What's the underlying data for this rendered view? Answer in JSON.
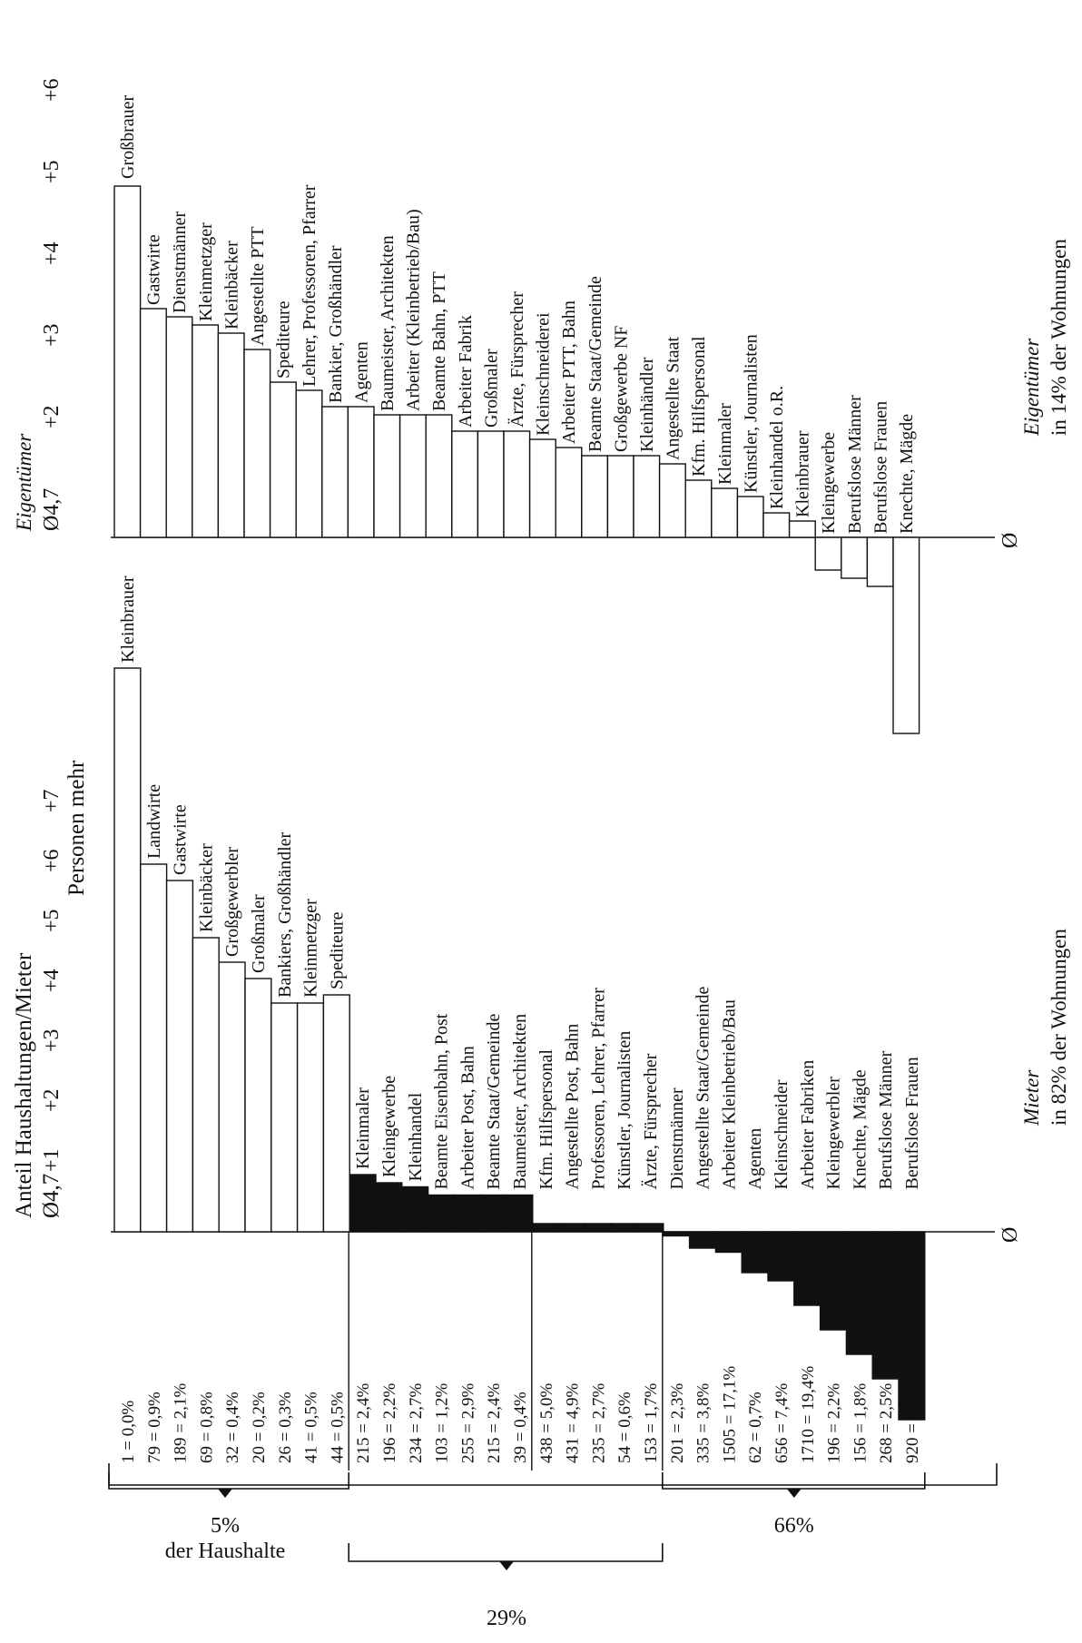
{
  "chart_data": [
    {
      "type": "bar",
      "orientation": "horizontal",
      "title": "Anteil Haushaltungen/Mieter",
      "baseline_label": "Ø4,7",
      "scale_ticks": [
        "+1",
        "+2",
        "+3",
        "+4",
        "+5",
        "+6",
        "+7"
      ],
      "scale_unit": "Personen mehr",
      "zero_label": "Ø",
      "footnote_title": "Mieter",
      "footnote_text": "in 82% der Wohnungen",
      "xlim": [
        -2.5,
        7
      ],
      "categories": [
        "Kleinbrauer",
        "Landwirte",
        "Gastwirte",
        "Kleinbäcker",
        "Großgewerbler",
        "Großmaler",
        "Bankiers, Großhändler",
        "Kleinmetzger",
        "Spediteure",
        "Kleinmaler",
        "Kleingewerbe",
        "Kleinhandel",
        "Beamte Eisenbahn, Post",
        "Arbeiter Post, Bahn",
        "Beamte Staat/Gemeinde",
        "Baumeister, Architekten",
        "Kfm. Hilfspersonal",
        "Angestellte Post, Bahn",
        "Professoren, Lehrer, Pfarrer",
        "Künstler, Journalisten",
        "Ärzte, Fürsprecher",
        "Dienstmänner",
        "Angestellte Staat/Gemeinde",
        "Arbeiter Kleinbetrieb/Bau",
        "Agenten",
        "Kleinschneider",
        "Arbeiter Fabriken",
        "Kleingewerbler",
        "Knechte, Mägde",
        "Berufslose Männer",
        "Berufslose Frauen"
      ],
      "values": [
        6.9,
        4.5,
        4.3,
        3.6,
        3.3,
        3.1,
        2.8,
        2.8,
        2.9,
        0.7,
        0.6,
        0.55,
        0.45,
        0.45,
        0.45,
        0.45,
        0.1,
        0.1,
        0.1,
        0.1,
        0.1,
        -0.05,
        -0.2,
        -0.25,
        -0.5,
        -0.6,
        -0.9,
        -1.2,
        -1.5,
        -1.8,
        -2.3
      ],
      "counts": [
        "1 = 0,0%",
        "79 = 0,9%",
        "189 = 2,1%",
        "69 = 0,8%",
        "32 = 0,4%",
        "20 = 0,2%",
        "26 = 0,3%",
        "41 = 0,5%",
        "44 = 0,5%",
        "215 = 2,4%",
        "196 = 2,2%",
        "234 = 2,7%",
        "103 = 1,2%",
        "255 = 2,9%",
        "215 = 2,4%",
        "39 = 0,4%",
        "438 = 5,0%",
        "431 = 4,9%",
        "235 = 2,7%",
        "54 = 0,6%",
        "153 = 1,7%",
        "201 = 2,3%",
        "335 = 3,8%",
        "1505 = 17,1%",
        "62 = 0,7%",
        "656 = 7,4%",
        "1710 = 19,4%",
        "196 = 2,2%",
        "156 = 1,8%",
        "268 = 2,5%",
        "920 = 8,7%"
      ],
      "groups": [
        {
          "label": "5%",
          "sublabel": "der Haushalte",
          "from": 0,
          "to": 8
        },
        {
          "label": "29%",
          "sublabel": "",
          "from": 9,
          "to": 20
        },
        {
          "label": "66%",
          "sublabel": "",
          "from": 21,
          "to": 30
        }
      ],
      "fill_positive_top": "#ffffff",
      "fill_negative": "#111111"
    },
    {
      "type": "bar",
      "orientation": "horizontal",
      "title": "Eigentümer",
      "baseline_label": "Ø4,7",
      "scale_ticks": [
        "+2",
        "+3",
        "+4",
        "+5",
        "+6"
      ],
      "zero_label": "Ø",
      "footnote_title": "Eigentümer",
      "footnote_text": "in 14% der Wohnungen",
      "xlim": [
        -2.5,
        4.5
      ],
      "categories": [
        "Großbrauer",
        "Gastwirte",
        "Dienstmänner",
        "Kleinmetzger",
        "Kleinbäcker",
        "Angestellte PTT",
        "Spediteure",
        "Lehrer, Professoren, Pfarrer",
        "Bankier, Großhändler",
        "Agenten",
        "Baumeister, Architekten",
        "Arbeiter (Kleinbetrieb/Bau)",
        "Beamte Bahn, PTT",
        "Arbeiter Fabrik",
        "Großmaler",
        "Ärzte, Fürsprecher",
        "Kleinschneiderei",
        "Arbeiter PTT, Bahn",
        "Beamte Staat/Gemeinde",
        "Großgewerbe NF",
        "Kleinhändler",
        "Angestellte Staat",
        "Kfm. Hilfspersonal",
        "Kleinmaler",
        "Künstler, Journalisten",
        "Kleinhandel o.R.",
        "Kleinbrauer",
        "Kleingewerbe",
        "Berufslose Männer",
        "Berufslose Frauen",
        "Knechte, Mägde"
      ],
      "values": [
        4.3,
        2.8,
        2.7,
        2.6,
        2.5,
        2.3,
        1.9,
        1.8,
        1.6,
        1.6,
        1.5,
        1.5,
        1.5,
        1.3,
        1.3,
        1.3,
        1.2,
        1.1,
        1.0,
        1.0,
        1.0,
        0.9,
        0.7,
        0.6,
        0.5,
        0.3,
        0.2,
        -0.4,
        -0.5,
        -0.6,
        -2.4
      ],
      "highlighted_index": 0
    }
  ]
}
